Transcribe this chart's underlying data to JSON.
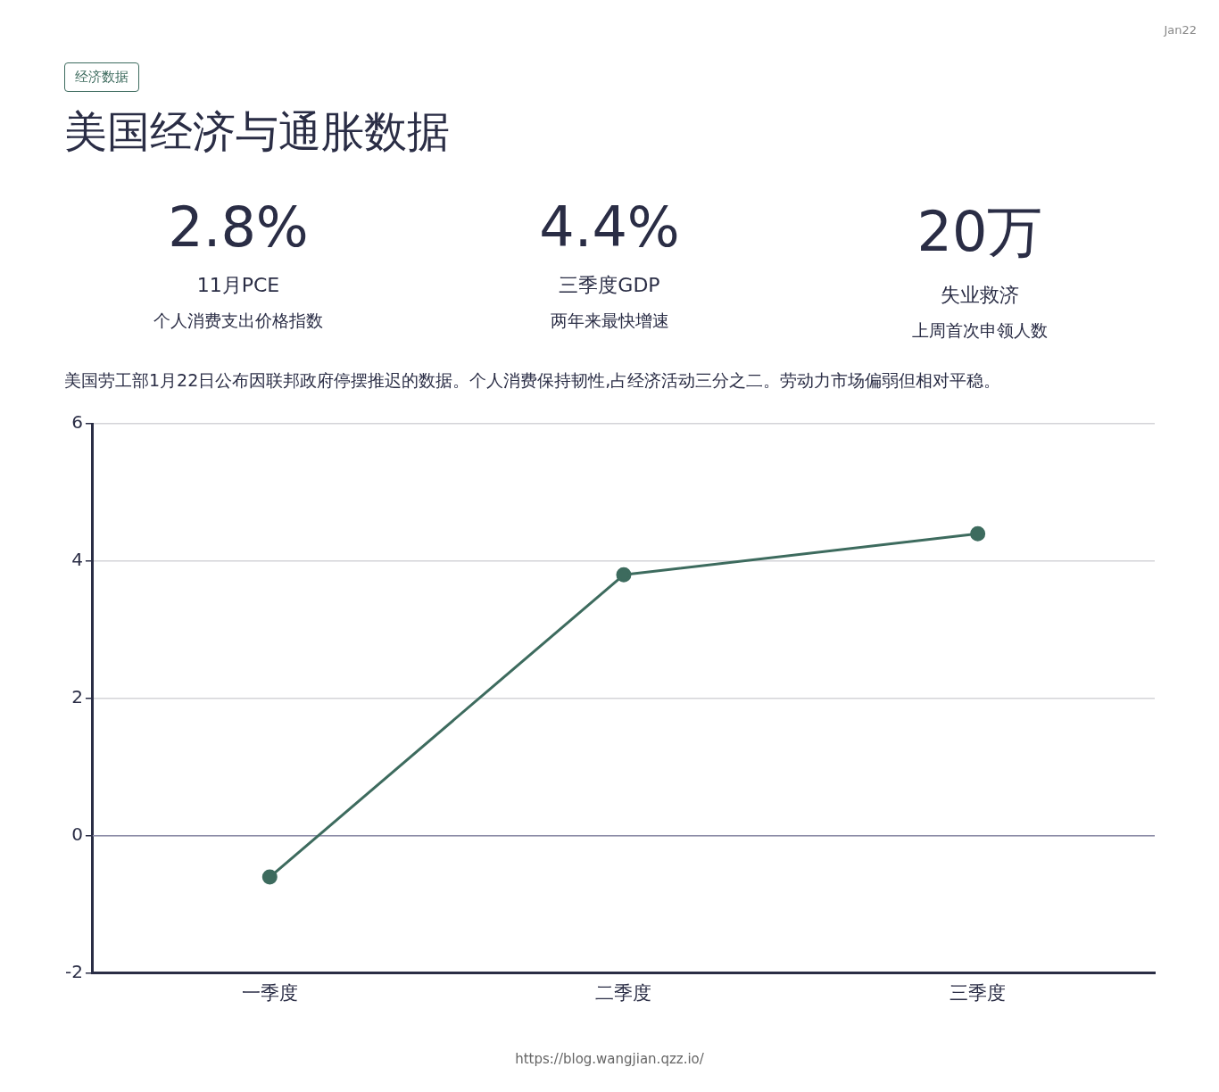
{
  "chart_data": {
    "type": "line",
    "title": "美国经济与通胀数据",
    "subtitle": "美国劳工部1月22日公布因联邦政府停摆推迟的数据。个人消费保持韧性,占经济活动三分之二。劳动力市场偏弱但相对平稳。",
    "annotations": [
      "Jan22",
      "经济数据",
      "2.8%",
      "11月PCE",
      "个人消费支出价格指数",
      "4.4%",
      "三季度GDP",
      "两年来最快增速",
      "20万",
      "失业救济",
      "上周首次申领人数",
      "https://blog.wangjian.qzz.io/"
    ],
    "categories": [
      "一季度",
      "二季度",
      "三季度"
    ],
    "series": [
      {
        "color": "#3d6b5e",
        "values": [
          -0.6,
          3.8,
          4.4
        ]
      }
    ],
    "ylim": [
      -2,
      6
    ],
    "yticks": [
      -2,
      0,
      2,
      4,
      6
    ],
    "grid": "y",
    "marker": "circle",
    "line_style": "solid",
    "legend": false,
    "ref_lines": [
      {
        "axis": "y",
        "value": 0,
        "color": "#8c8ca8"
      }
    ]
  }
}
